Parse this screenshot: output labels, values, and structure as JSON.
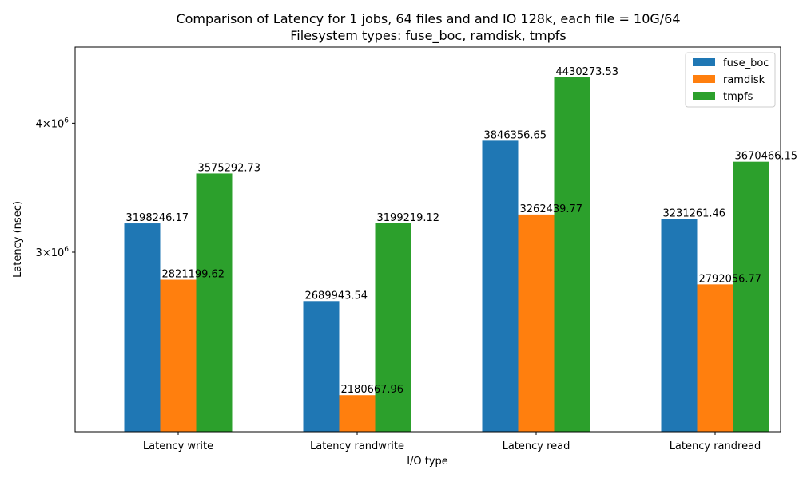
{
  "chart_data": {
    "type": "bar",
    "title": "Comparison of Latency for 1 jobs, 64 files and  and IO 128k, each file = 10G/64",
    "subtitle": "Filesystem types: fuse_boc, ramdisk, tmpfs",
    "xlabel": "I/O type",
    "ylabel": "Latency (nsec)",
    "yscale": "log",
    "ylim": [
      2010000,
      4740000
    ],
    "y_ticks": [
      {
        "value": 3000000,
        "mantissa": "3",
        "exponent": "6"
      },
      {
        "value": 4000000,
        "mantissa": "4",
        "exponent": "6"
      }
    ],
    "categories": [
      "Latency write",
      "Latency randwrite",
      "Latency read",
      "Latency randread"
    ],
    "series": [
      {
        "name": "fuse_boc",
        "color": "#1f77b4",
        "values": [
          3198246.17,
          2689943.54,
          3846356.65,
          3231261.46
        ],
        "labels": [
          "3198246.17",
          "2689943.54",
          "3846356.65",
          "3231261.46"
        ]
      },
      {
        "name": "ramdisk",
        "color": "#ff7f0e",
        "values": [
          2821199.62,
          2180667.96,
          3262439.77,
          2792056.77
        ],
        "labels": [
          "2821199.62",
          "2180667.96",
          "3262439.77",
          "2792056.77"
        ]
      },
      {
        "name": "tmpfs",
        "color": "#2ca02c",
        "values": [
          3575292.73,
          3199219.12,
          4430273.53,
          3670466.15
        ],
        "labels": [
          "3575292.73",
          "3199219.12",
          "4430273.53",
          "3670466.15"
        ]
      }
    ],
    "legend_position": "top-right",
    "grid": false
  }
}
